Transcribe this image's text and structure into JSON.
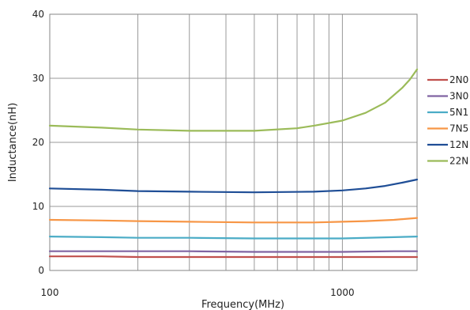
{
  "chart_data": {
    "type": "line",
    "title": "",
    "xlabel": "Frequency(MHz)",
    "ylabel": "Inductance(nH)",
    "xscale": "log",
    "xlim": [
      100,
      1800
    ],
    "ylim": [
      0,
      40
    ],
    "xticks": [
      100,
      1000
    ],
    "xtick_labels": [
      "100",
      "1000"
    ],
    "yticks": [
      0,
      10,
      20,
      30,
      40
    ],
    "ytick_labels": [
      "0",
      "10",
      "20",
      "30",
      "40"
    ],
    "grid": "vertical minor + horizontal major",
    "legend_position": "right",
    "series": [
      {
        "name": "2N0",
        "color": "#c0504d",
        "x": [
          100,
          150,
          200,
          300,
          500,
          800,
          1000,
          1500,
          1800
        ],
        "y": [
          2.2,
          2.2,
          2.1,
          2.1,
          2.1,
          2.1,
          2.1,
          2.1,
          2.1
        ]
      },
      {
        "name": "3N0",
        "color": "#8064a2",
        "x": [
          100,
          150,
          200,
          300,
          500,
          800,
          1000,
          1500,
          1800
        ],
        "y": [
          3.0,
          3.0,
          3.0,
          3.0,
          2.9,
          2.9,
          2.9,
          3.0,
          3.0
        ]
      },
      {
        "name": "5N1",
        "color": "#4bacc6",
        "x": [
          100,
          150,
          200,
          300,
          500,
          800,
          1000,
          1500,
          1800
        ],
        "y": [
          5.3,
          5.2,
          5.1,
          5.1,
          5.0,
          5.0,
          5.0,
          5.2,
          5.3
        ]
      },
      {
        "name": "7N5",
        "color": "#f79646",
        "x": [
          100,
          150,
          200,
          300,
          500,
          800,
          1000,
          1200,
          1500,
          1800
        ],
        "y": [
          7.9,
          7.8,
          7.7,
          7.6,
          7.5,
          7.5,
          7.6,
          7.7,
          7.9,
          8.2
        ]
      },
      {
        "name": "12N",
        "color": "#1f4e96",
        "x": [
          100,
          150,
          200,
          300,
          500,
          800,
          1000,
          1200,
          1400,
          1600,
          1800
        ],
        "y": [
          12.8,
          12.6,
          12.4,
          12.3,
          12.2,
          12.3,
          12.5,
          12.8,
          13.2,
          13.7,
          14.2
        ]
      },
      {
        "name": "22N",
        "color": "#9bbb59",
        "x": [
          100,
          150,
          200,
          300,
          500,
          700,
          800,
          1000,
          1200,
          1400,
          1600,
          1700,
          1800
        ],
        "y": [
          22.6,
          22.3,
          22.0,
          21.8,
          21.8,
          22.2,
          22.6,
          23.4,
          24.6,
          26.2,
          28.5,
          29.8,
          31.4
        ]
      }
    ]
  }
}
